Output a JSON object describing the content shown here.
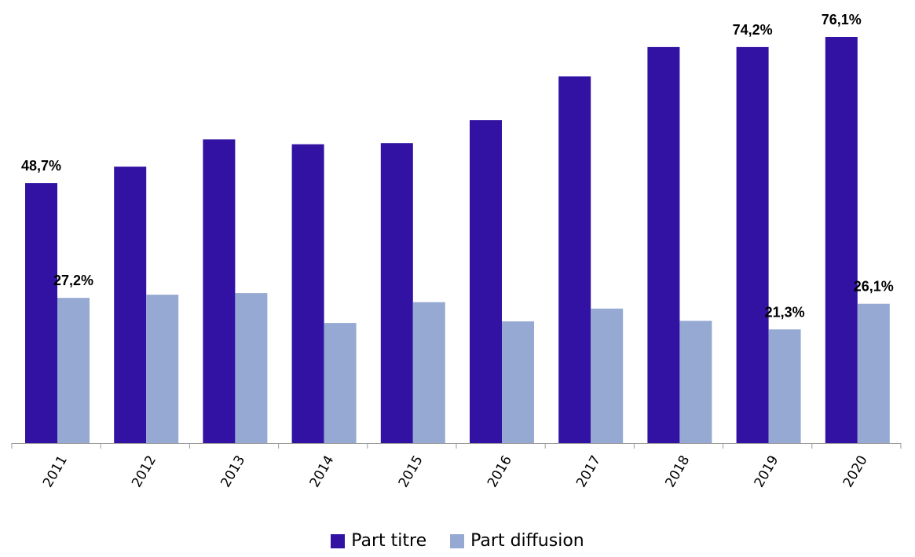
{
  "chart_data": {
    "type": "bar",
    "title": "",
    "xlabel": "",
    "ylabel": "",
    "ylim": [
      0,
      80
    ],
    "grid": false,
    "legend_position": "bottom",
    "categories": [
      "2011",
      "2012",
      "2013",
      "2014",
      "2015",
      "2016",
      "2017",
      "2018",
      "2019",
      "2020"
    ],
    "series": [
      {
        "name": "Part titre",
        "color": "#3112A2",
        "values": [
          48.7,
          51.8,
          56.9,
          56.0,
          56.2,
          60.5,
          68.7,
          74.2,
          74.2,
          76.1
        ],
        "data_labels": [
          "48,7%",
          "",
          "",
          "",
          "",
          "",
          "",
          "",
          "74,2%",
          "76,1%"
        ]
      },
      {
        "name": "Part diffusion",
        "color": "#95A9D2",
        "values": [
          27.2,
          27.8,
          28.1,
          22.5,
          26.4,
          22.8,
          25.2,
          22.9,
          21.3,
          26.1
        ],
        "data_labels": [
          "27,2%",
          "",
          "",
          "",
          "",
          "",
          "",
          "",
          "21,3%",
          "26,1%"
        ]
      }
    ]
  }
}
